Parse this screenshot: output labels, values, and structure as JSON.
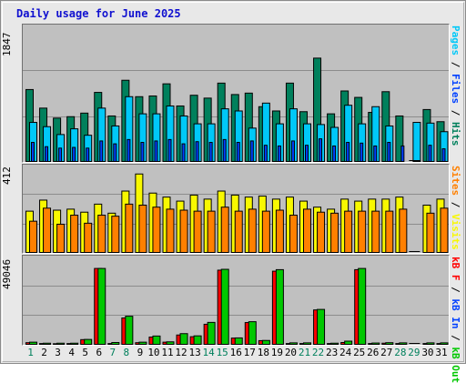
{
  "title": "Daily usage for June 2025",
  "colors": {
    "hits": "#00805c",
    "files": "#0040ff",
    "pages": "#00c8f8",
    "visits": "#f8f800",
    "sites": "#ff8000",
    "kbout": "#ff0000",
    "kbin": "#00c800",
    "weekday_label": "#000000",
    "weekend_label": "#00805c",
    "legend_slash": "#000000"
  },
  "legends": {
    "hits_panel": [
      {
        "label": "Pages",
        "color": "#00c8f8"
      },
      {
        "label": " / ",
        "color": "#000000"
      },
      {
        "label": "Files",
        "color": "#0040ff"
      },
      {
        "label": " / ",
        "color": "#000000"
      },
      {
        "label": "Hits",
        "color": "#00805c"
      }
    ],
    "sites_panel": [
      {
        "label": "Sites",
        "color": "#ff8000"
      },
      {
        "label": " / ",
        "color": "#000000"
      },
      {
        "label": "Visits",
        "color": "#f8f800"
      }
    ],
    "kb_panel": [
      {
        "label": "kB F",
        "color": "#ff0000"
      },
      {
        "label": " / ",
        "color": "#000000"
      },
      {
        "label": "kB In",
        "color": "#0040ff"
      },
      {
        "label": " / ",
        "color": "#000000"
      },
      {
        "label": "kB Out",
        "color": "#00c800"
      }
    ]
  },
  "chart_data": [
    {
      "type": "bar",
      "panel": "hits",
      "ymax_label": "1847",
      "ylim": [
        0,
        1847
      ],
      "grid": true,
      "categories": [
        "1",
        "2",
        "3",
        "4",
        "5",
        "6",
        "7",
        "8",
        "9",
        "10",
        "11",
        "12",
        "13",
        "14",
        "15",
        "16",
        "17",
        "18",
        "19",
        "20",
        "21",
        "22",
        "23",
        "24",
        "25",
        "26",
        "27",
        "28",
        "29",
        "30",
        "31"
      ],
      "series": [
        {
          "name": "Hits",
          "color": "#00805c",
          "values": [
            1020,
            760,
            620,
            640,
            690,
            980,
            650,
            1150,
            920,
            930,
            1100,
            790,
            940,
            900,
            1110,
            950,
            970,
            780,
            720,
            1110,
            710,
            1460,
            680,
            1000,
            910,
            700,
            990,
            650,
            0,
            740,
            570
          ]
        },
        {
          "name": "Files",
          "color": "#0040ff",
          "values": [
            280,
            220,
            200,
            210,
            200,
            300,
            260,
            320,
            280,
            300,
            320,
            260,
            290,
            280,
            320,
            280,
            300,
            240,
            230,
            300,
            240,
            330,
            230,
            280,
            270,
            230,
            280,
            230,
            0,
            240,
            190
          ]
        },
        {
          "name": "Pages",
          "color": "#00c8f8",
          "values": [
            560,
            500,
            390,
            470,
            380,
            760,
            510,
            920,
            680,
            680,
            790,
            650,
            540,
            540,
            750,
            720,
            480,
            830,
            540,
            750,
            540,
            530,
            490,
            800,
            540,
            780,
            510,
            0,
            560,
            550,
            430
          ]
        }
      ]
    },
    {
      "type": "bar",
      "panel": "sites",
      "ymax_label": "412",
      "ylim": [
        0,
        412
      ],
      "grid": true,
      "categories": [
        "1",
        "2",
        "3",
        "4",
        "5",
        "6",
        "7",
        "8",
        "9",
        "10",
        "11",
        "12",
        "13",
        "14",
        "15",
        "16",
        "17",
        "18",
        "19",
        "20",
        "21",
        "22",
        "23",
        "24",
        "25",
        "26",
        "27",
        "28",
        "29",
        "30",
        "31"
      ],
      "series": [
        {
          "name": "Visits",
          "color": "#f8f800",
          "values": [
            210,
            265,
            215,
            220,
            205,
            245,
            200,
            310,
            395,
            300,
            280,
            260,
            290,
            270,
            310,
            290,
            280,
            285,
            270,
            280,
            260,
            230,
            220,
            270,
            260,
            270,
            270,
            280,
            0,
            240,
            270
          ]
        },
        {
          "name": "Sites",
          "color": "#ff8000",
          "values": [
            160,
            225,
            145,
            190,
            150,
            190,
            185,
            245,
            240,
            230,
            220,
            215,
            210,
            210,
            230,
            210,
            220,
            210,
            215,
            190,
            220,
            205,
            200,
            210,
            210,
            210,
            210,
            220,
            0,
            200,
            225
          ]
        }
      ]
    },
    {
      "type": "bar",
      "panel": "kB",
      "ymax_label": "49046",
      "ylim": [
        0,
        49046
      ],
      "grid": true,
      "categories": [
        "1",
        "2",
        "3",
        "4",
        "5",
        "6",
        "7",
        "8",
        "9",
        "10",
        "11",
        "12",
        "13",
        "14",
        "15",
        "16",
        "17",
        "18",
        "19",
        "20",
        "21",
        "22",
        "23",
        "24",
        "25",
        "26",
        "27",
        "28",
        "29",
        "30",
        "31"
      ],
      "series": [
        {
          "name": "kB F",
          "color": "#ff0000",
          "values": [
            1500,
            1000,
            900,
            1000,
            3300,
            45000,
            1000,
            16000,
            1500,
            4800,
            1800,
            6000,
            5000,
            12300,
            44000,
            4200,
            13300,
            2700,
            43400,
            1000,
            1000,
            20700,
            1000,
            1600,
            44300,
            1000,
            1200,
            1000,
            0,
            1000,
            1000
          ]
        },
        {
          "name": "kB In",
          "color": "#0040ff",
          "values": [
            0,
            0,
            0,
            0,
            0,
            0,
            0,
            0,
            0,
            0,
            0,
            0,
            0,
            0,
            0,
            0,
            0,
            0,
            0,
            0,
            0,
            0,
            0,
            0,
            0,
            0,
            0,
            0,
            0,
            0,
            0
          ]
        },
        {
          "name": "kB Out",
          "color": "#00c800",
          "values": [
            1800,
            1200,
            1200,
            1200,
            3400,
            45000,
            1600,
            17000,
            1800,
            5400,
            2000,
            6800,
            5500,
            13400,
            44500,
            4300,
            13800,
            2800,
            44300,
            1400,
            1400,
            21000,
            1200,
            2400,
            45000,
            1300,
            1500,
            1400,
            0,
            1400,
            1400
          ]
        }
      ]
    }
  ],
  "x_labels": {
    "days": [
      "1",
      "2",
      "3",
      "4",
      "5",
      "6",
      "7",
      "8",
      "9",
      "10",
      "11",
      "12",
      "13",
      "14",
      "15",
      "16",
      "17",
      "18",
      "19",
      "20",
      "21",
      "22",
      "23",
      "24",
      "25",
      "26",
      "27",
      "28",
      "29",
      "30",
      "31"
    ],
    "weekend": [
      "1",
      "7",
      "8",
      "14",
      "15",
      "21",
      "22",
      "28",
      "29"
    ]
  }
}
